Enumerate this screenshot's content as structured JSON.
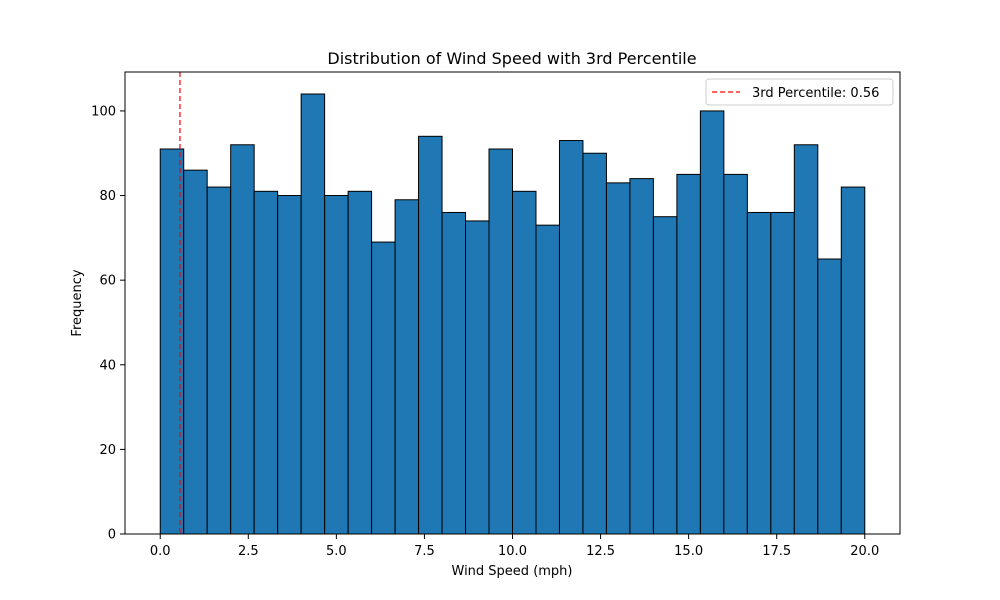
{
  "chart_data": {
    "type": "bar",
    "title": "Distribution of Wind Speed with 3rd Percentile",
    "xlabel": "Wind Speed (mph)",
    "ylabel": "Frequency",
    "xlim": [
      -1.0,
      21.0
    ],
    "ylim": [
      0,
      109.2
    ],
    "bin_range": [
      0,
      20
    ],
    "bins": 30,
    "values": [
      91,
      86,
      82,
      92,
      81,
      80,
      104,
      80,
      81,
      69,
      79,
      94,
      76,
      74,
      91,
      81,
      73,
      93,
      90,
      83,
      84,
      75,
      85,
      100,
      85,
      76,
      76,
      92,
      65,
      82
    ],
    "x_ticks": [
      0.0,
      2.5,
      5.0,
      7.5,
      10.0,
      12.5,
      15.0,
      17.5,
      20.0
    ],
    "x_tick_labels": [
      "0.0",
      "2.5",
      "5.0",
      "7.5",
      "10.0",
      "12.5",
      "15.0",
      "17.5",
      "20.0"
    ],
    "y_ticks": [
      0,
      20,
      40,
      60,
      80,
      100
    ],
    "y_tick_labels": [
      "0",
      "20",
      "40",
      "60",
      "80",
      "100"
    ],
    "bar_color": "#1f77b4",
    "bar_edge_color": "#000000",
    "percentile_line": {
      "value": 0.56,
      "color": "#ff0000",
      "style": "dashed",
      "label": "3rd Percentile: 0.56"
    },
    "legend": {
      "position": "top-right",
      "entries": [
        "3rd Percentile: 0.56"
      ]
    },
    "grid": false
  }
}
